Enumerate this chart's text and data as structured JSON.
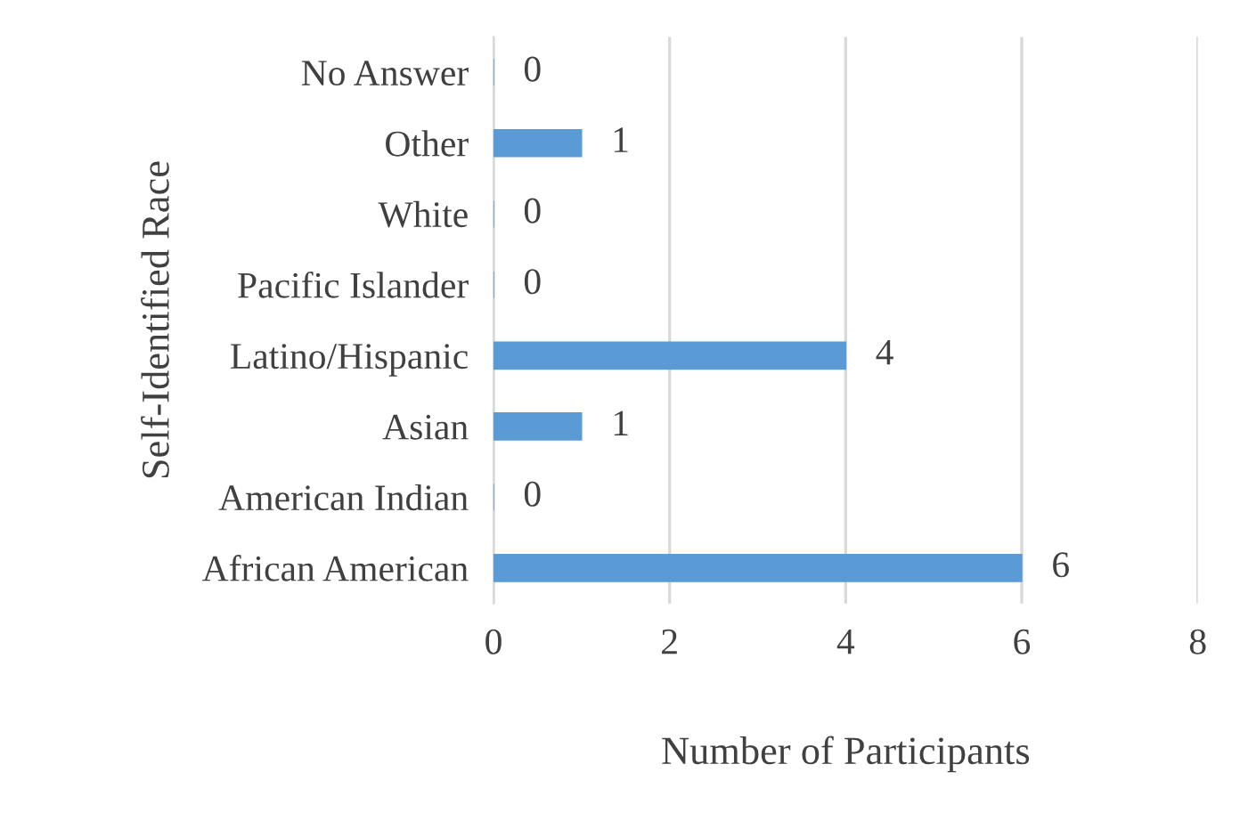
{
  "chart_data": {
    "type": "bar",
    "orientation": "horizontal",
    "categories": [
      "No Answer",
      "Other",
      "White",
      "Pacific Islander",
      "Latino/Hispanic",
      "Asian",
      "American Indian",
      "African American"
    ],
    "values": [
      0,
      1,
      0,
      0,
      4,
      1,
      0,
      6
    ],
    "color": "#5b9bd5",
    "xlabel": "Number of Participants",
    "ylabel": "Self-Identified Race",
    "xlim": [
      0,
      8
    ],
    "xticks": [
      0,
      2,
      4,
      6,
      8
    ],
    "grid": "x",
    "data_labels": true,
    "legend": false
  }
}
